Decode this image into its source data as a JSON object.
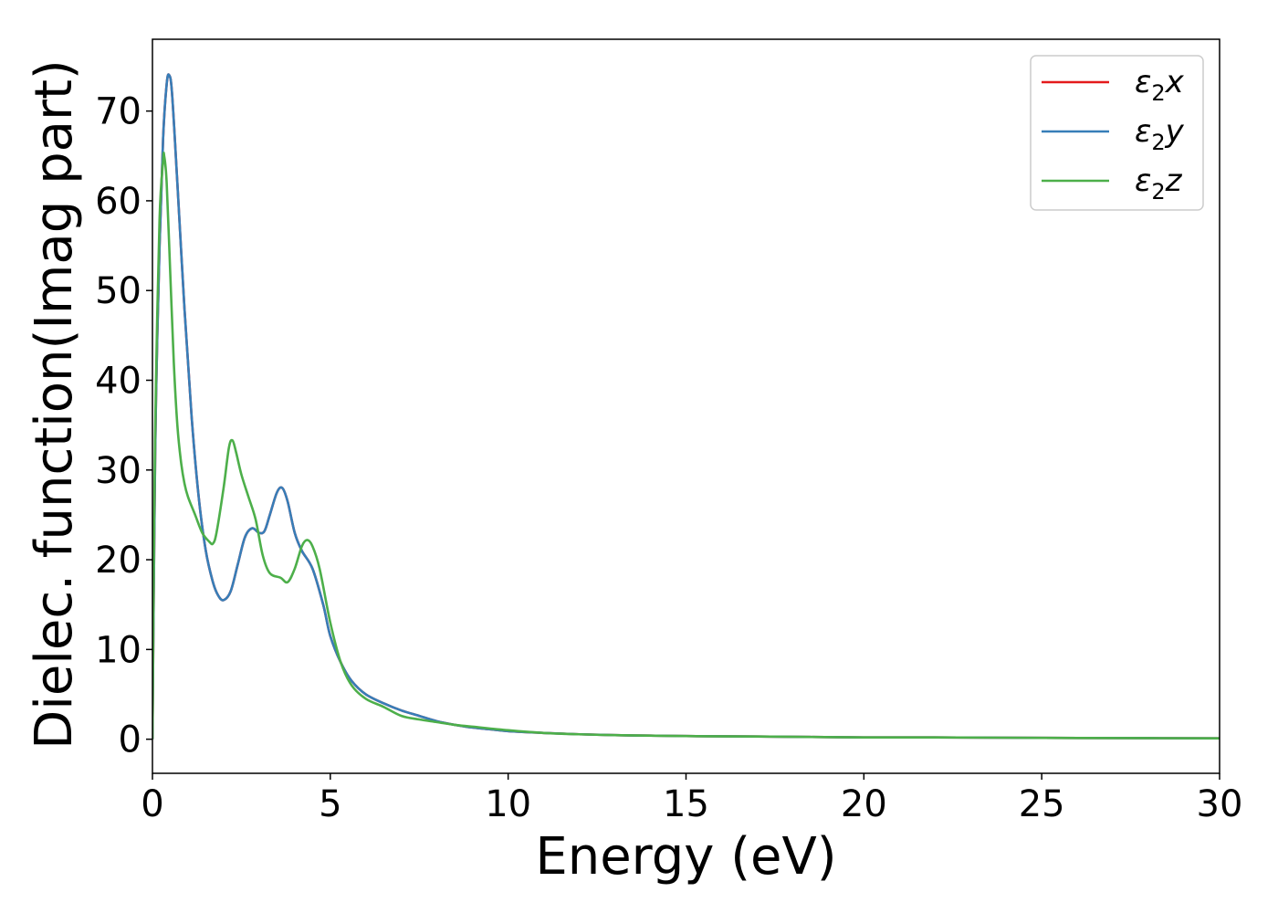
{
  "chart_data": {
    "type": "line",
    "xlabel": "Energy (eV)",
    "ylabel": "Dielec. function(Imag part)",
    "xlim": [
      0,
      30
    ],
    "ylim": [
      -3.8,
      78
    ],
    "xticks": [
      0,
      5,
      10,
      15,
      20,
      25,
      30
    ],
    "yticks": [
      0,
      10,
      20,
      30,
      40,
      50,
      60,
      70
    ],
    "grid": false,
    "legend_position": "top-right",
    "legend": [
      {
        "base": "ε",
        "sub": "2",
        "axis": "x",
        "color": "#e41a1c"
      },
      {
        "base": "ε",
        "sub": "2",
        "axis": "y",
        "color": "#377eb8"
      },
      {
        "base": "ε",
        "sub": "2",
        "axis": "z",
        "color": "#4daf4a"
      }
    ],
    "series": [
      {
        "name": "ε2x",
        "color": "#e41a1c",
        "x": [
          0.0,
          0.05,
          0.1,
          0.2,
          0.3,
          0.4,
          0.47,
          0.55,
          0.7,
          0.9,
          1.1,
          1.3,
          1.5,
          1.7,
          1.85,
          2.0,
          2.2,
          2.4,
          2.6,
          2.8,
          3.0,
          3.15,
          3.3,
          3.5,
          3.65,
          3.8,
          4.0,
          4.2,
          4.5,
          4.8,
          5.0,
          5.3,
          5.6,
          6.0,
          6.5,
          7.0,
          7.5,
          8.0,
          8.5,
          9.0,
          9.5,
          10.0,
          11.0,
          12.0,
          13.0,
          14.0,
          15.0,
          17.0,
          20.0,
          22.0,
          25.0,
          28.0,
          30.0
        ],
        "y": [
          0.0,
          22.0,
          38.0,
          55.0,
          67.0,
          73.0,
          74.0,
          72.0,
          62.0,
          48.0,
          36.0,
          27.0,
          21.0,
          17.5,
          16.0,
          15.5,
          16.5,
          19.5,
          22.5,
          23.5,
          23.0,
          23.2,
          25.0,
          27.5,
          28.0,
          26.5,
          23.0,
          21.0,
          19.0,
          15.0,
          11.5,
          8.5,
          6.5,
          5.0,
          4.0,
          3.2,
          2.6,
          2.0,
          1.6,
          1.3,
          1.1,
          0.9,
          0.7,
          0.55,
          0.45,
          0.4,
          0.35,
          0.3,
          0.2,
          0.2,
          0.15,
          0.12,
          0.1
        ]
      },
      {
        "name": "ε2y",
        "color": "#377eb8",
        "x": [
          0.0,
          0.05,
          0.1,
          0.2,
          0.3,
          0.4,
          0.47,
          0.55,
          0.7,
          0.9,
          1.1,
          1.3,
          1.5,
          1.7,
          1.85,
          2.0,
          2.2,
          2.4,
          2.6,
          2.8,
          3.0,
          3.15,
          3.3,
          3.5,
          3.65,
          3.8,
          4.0,
          4.2,
          4.5,
          4.8,
          5.0,
          5.3,
          5.6,
          6.0,
          6.5,
          7.0,
          7.5,
          8.0,
          8.5,
          9.0,
          9.5,
          10.0,
          11.0,
          12.0,
          13.0,
          14.0,
          15.0,
          17.0,
          20.0,
          22.0,
          25.0,
          28.0,
          30.0
        ],
        "y": [
          0.0,
          22.0,
          38.0,
          55.0,
          67.0,
          73.0,
          74.0,
          72.0,
          62.0,
          48.0,
          36.0,
          27.0,
          21.0,
          17.5,
          16.0,
          15.5,
          16.5,
          19.5,
          22.5,
          23.5,
          23.0,
          23.2,
          25.0,
          27.5,
          28.0,
          26.5,
          23.0,
          21.0,
          19.0,
          15.0,
          11.5,
          8.5,
          6.5,
          5.0,
          4.0,
          3.2,
          2.6,
          2.0,
          1.6,
          1.3,
          1.1,
          0.9,
          0.7,
          0.55,
          0.45,
          0.4,
          0.35,
          0.3,
          0.2,
          0.2,
          0.15,
          0.12,
          0.1
        ]
      },
      {
        "name": "ε2z",
        "color": "#4daf4a",
        "x": [
          0.0,
          0.05,
          0.1,
          0.2,
          0.3,
          0.33,
          0.4,
          0.5,
          0.6,
          0.7,
          0.8,
          0.9,
          1.0,
          1.2,
          1.4,
          1.6,
          1.7,
          1.8,
          2.0,
          2.15,
          2.25,
          2.35,
          2.5,
          2.7,
          2.9,
          3.1,
          3.3,
          3.6,
          3.8,
          4.0,
          4.2,
          4.35,
          4.5,
          4.7,
          5.0,
          5.3,
          5.6,
          6.0,
          6.5,
          7.0,
          7.5,
          8.0,
          8.5,
          9.0,
          10.0,
          11.0,
          12.0,
          13.0,
          15.0,
          17.0,
          20.0,
          22.0,
          25.0,
          28.0,
          30.0
        ],
        "y": [
          0.0,
          25.0,
          40.0,
          58.0,
          64.5,
          65.0,
          62.0,
          52.0,
          42.0,
          35.0,
          31.0,
          28.5,
          27.0,
          25.0,
          23.0,
          22.0,
          21.8,
          23.0,
          28.0,
          32.5,
          33.3,
          32.0,
          29.5,
          27.0,
          24.5,
          20.5,
          18.5,
          18.0,
          17.5,
          19.0,
          21.5,
          22.2,
          21.5,
          19.0,
          13.0,
          8.5,
          6.0,
          4.5,
          3.6,
          2.6,
          2.2,
          1.9,
          1.6,
          1.4,
          1.0,
          0.7,
          0.55,
          0.45,
          0.35,
          0.3,
          0.2,
          0.2,
          0.15,
          0.12,
          0.1
        ]
      }
    ]
  }
}
